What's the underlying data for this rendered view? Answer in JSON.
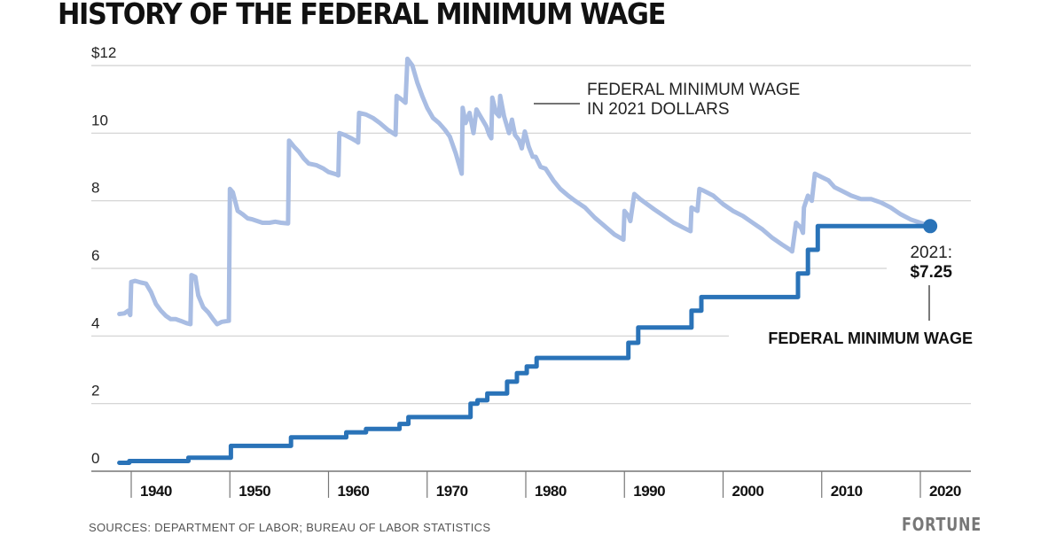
{
  "header": {
    "title": "HISTORY OF THE FEDERAL MINIMUM WAGE"
  },
  "footer": {
    "source": "SOURCES: DEPARTMENT OF LABOR; BUREAU OF LABOR STATISTICS",
    "logo": "FORTUNE"
  },
  "colors": {
    "nominal": "#2a73b8",
    "real": "#a9bde3",
    "grid": "#d0d0d0",
    "axis": "#777777"
  },
  "chart_data": {
    "type": "line",
    "title": "HISTORY OF THE FEDERAL MINIMUM WAGE",
    "xlabel": "",
    "ylabel": "",
    "xlim": [
      1937,
      2024
    ],
    "ylim": [
      0,
      12
    ],
    "grid": true,
    "yticks": [
      {
        "value": 0,
        "label": "0"
      },
      {
        "value": 2,
        "label": "2"
      },
      {
        "value": 4,
        "label": "4"
      },
      {
        "value": 6,
        "label": "6"
      },
      {
        "value": 8,
        "label": "8"
      },
      {
        "value": 10,
        "label": "10"
      },
      {
        "value": 12,
        "label": "$12"
      }
    ],
    "xticks": [
      {
        "value": 1940,
        "label": "1940"
      },
      {
        "value": 1950,
        "label": "1950"
      },
      {
        "value": 1960,
        "label": "1960"
      },
      {
        "value": 1970,
        "label": "1970"
      },
      {
        "value": 1980,
        "label": "1980"
      },
      {
        "value": 1990,
        "label": "1990"
      },
      {
        "value": 2000,
        "label": "2000"
      },
      {
        "value": 2010,
        "label": "2010"
      },
      {
        "value": 2020,
        "label": "2020"
      }
    ],
    "series": [
      {
        "name": "FEDERAL MINIMUM WAGE IN 2021 DOLLARS",
        "style": "real",
        "points": [
          [
            1938.8,
            4.65
          ],
          [
            1939.3,
            4.67
          ],
          [
            1939.7,
            4.75
          ],
          [
            1939.9,
            4.62
          ],
          [
            1940.0,
            5.6
          ],
          [
            1940.4,
            5.63
          ],
          [
            1941.0,
            5.58
          ],
          [
            1941.5,
            5.55
          ],
          [
            1942.0,
            5.3
          ],
          [
            1942.5,
            4.95
          ],
          [
            1943.0,
            4.75
          ],
          [
            1943.5,
            4.6
          ],
          [
            1944.0,
            4.5
          ],
          [
            1944.5,
            4.5
          ],
          [
            1945.0,
            4.45
          ],
          [
            1945.6,
            4.38
          ],
          [
            1946.0,
            4.35
          ],
          [
            1946.1,
            5.8
          ],
          [
            1946.5,
            5.75
          ],
          [
            1946.8,
            5.2
          ],
          [
            1947.3,
            4.85
          ],
          [
            1947.8,
            4.7
          ],
          [
            1948.3,
            4.5
          ],
          [
            1948.7,
            4.35
          ],
          [
            1949.2,
            4.42
          ],
          [
            1949.9,
            4.45
          ],
          [
            1950.0,
            8.35
          ],
          [
            1950.3,
            8.25
          ],
          [
            1950.8,
            7.7
          ],
          [
            1951.3,
            7.6
          ],
          [
            1951.8,
            7.48
          ],
          [
            1952.3,
            7.45
          ],
          [
            1952.8,
            7.4
          ],
          [
            1953.3,
            7.35
          ],
          [
            1954.0,
            7.35
          ],
          [
            1954.6,
            7.38
          ],
          [
            1955.2,
            7.35
          ],
          [
            1955.9,
            7.33
          ],
          [
            1956.0,
            9.78
          ],
          [
            1956.5,
            9.6
          ],
          [
            1957.0,
            9.45
          ],
          [
            1957.5,
            9.25
          ],
          [
            1958.0,
            9.1
          ],
          [
            1958.8,
            9.05
          ],
          [
            1959.5,
            8.95
          ],
          [
            1960.0,
            8.85
          ],
          [
            1960.8,
            8.78
          ],
          [
            1961.0,
            8.75
          ],
          [
            1961.1,
            10.0
          ],
          [
            1961.6,
            9.95
          ],
          [
            1962.3,
            9.85
          ],
          [
            1962.9,
            9.75
          ],
          [
            1963.0,
            9.72
          ],
          [
            1963.1,
            10.6
          ],
          [
            1963.8,
            10.55
          ],
          [
            1964.5,
            10.45
          ],
          [
            1965.2,
            10.3
          ],
          [
            1966.0,
            10.1
          ],
          [
            1966.8,
            9.95
          ],
          [
            1966.9,
            11.1
          ],
          [
            1967.4,
            11.0
          ],
          [
            1967.8,
            10.9
          ],
          [
            1968.0,
            12.2
          ],
          [
            1968.5,
            12.0
          ],
          [
            1969.0,
            11.5
          ],
          [
            1969.5,
            11.1
          ],
          [
            1970.0,
            10.75
          ],
          [
            1970.6,
            10.45
          ],
          [
            1971.2,
            10.3
          ],
          [
            1971.8,
            10.1
          ],
          [
            1972.3,
            9.9
          ],
          [
            1972.9,
            9.4
          ],
          [
            1973.5,
            8.8
          ],
          [
            1973.6,
            10.75
          ],
          [
            1973.9,
            10.3
          ],
          [
            1974.3,
            10.6
          ],
          [
            1974.7,
            10.0
          ],
          [
            1975.0,
            10.7
          ],
          [
            1975.4,
            10.5
          ],
          [
            1976.0,
            10.2
          ],
          [
            1976.3,
            9.95
          ],
          [
            1976.5,
            9.85
          ],
          [
            1976.6,
            11.05
          ],
          [
            1977.0,
            10.6
          ],
          [
            1977.3,
            10.5
          ],
          [
            1977.4,
            11.1
          ],
          [
            1977.8,
            10.5
          ],
          [
            1978.3,
            10.0
          ],
          [
            1978.6,
            10.4
          ],
          [
            1978.9,
            9.95
          ],
          [
            1979.3,
            9.8
          ],
          [
            1979.6,
            9.55
          ],
          [
            1979.9,
            10.05
          ],
          [
            1980.3,
            9.6
          ],
          [
            1980.7,
            9.3
          ],
          [
            1981.0,
            9.3
          ],
          [
            1981.5,
            9.0
          ],
          [
            1982.0,
            8.95
          ],
          [
            1982.8,
            8.6
          ],
          [
            1983.5,
            8.35
          ],
          [
            1984.3,
            8.15
          ],
          [
            1985.0,
            8.0
          ],
          [
            1986.0,
            7.8
          ],
          [
            1987.0,
            7.5
          ],
          [
            1988.0,
            7.25
          ],
          [
            1989.0,
            7.0
          ],
          [
            1989.9,
            6.85
          ],
          [
            1990.0,
            7.7
          ],
          [
            1990.4,
            7.55
          ],
          [
            1990.6,
            7.4
          ],
          [
            1991.0,
            8.2
          ],
          [
            1991.6,
            8.05
          ],
          [
            1992.3,
            7.9
          ],
          [
            1993.0,
            7.75
          ],
          [
            1994.0,
            7.55
          ],
          [
            1995.0,
            7.35
          ],
          [
            1996.0,
            7.2
          ],
          [
            1996.7,
            7.1
          ],
          [
            1996.8,
            7.8
          ],
          [
            1997.4,
            7.7
          ],
          [
            1997.6,
            8.35
          ],
          [
            1998.0,
            8.3
          ],
          [
            1999.0,
            8.15
          ],
          [
            2000.0,
            7.9
          ],
          [
            2001.0,
            7.7
          ],
          [
            2002.0,
            7.55
          ],
          [
            2003.0,
            7.35
          ],
          [
            2004.0,
            7.15
          ],
          [
            2005.0,
            6.9
          ],
          [
            2006.0,
            6.7
          ],
          [
            2006.8,
            6.55
          ],
          [
            2007.0,
            6.5
          ],
          [
            2007.4,
            7.35
          ],
          [
            2007.9,
            7.2
          ],
          [
            2008.1,
            7.05
          ],
          [
            2008.2,
            7.8
          ],
          [
            2008.6,
            8.15
          ],
          [
            2009.0,
            8.0
          ],
          [
            2009.3,
            8.8
          ],
          [
            2010.0,
            8.7
          ],
          [
            2010.7,
            8.6
          ],
          [
            2011.3,
            8.4
          ],
          [
            2012.0,
            8.3
          ],
          [
            2013.0,
            8.15
          ],
          [
            2014.0,
            8.05
          ],
          [
            2015.0,
            8.05
          ],
          [
            2016.0,
            7.95
          ],
          [
            2017.0,
            7.8
          ],
          [
            2018.0,
            7.6
          ],
          [
            2019.0,
            7.45
          ],
          [
            2020.0,
            7.35
          ],
          [
            2021.0,
            7.25
          ]
        ]
      },
      {
        "name": "FEDERAL MINIMUM WAGE",
        "style": "nominal",
        "step": true,
        "points": [
          [
            1938.8,
            0.25
          ],
          [
            1939.8,
            0.3
          ],
          [
            1945.8,
            0.4
          ],
          [
            1950.1,
            0.75
          ],
          [
            1956.2,
            1.0
          ],
          [
            1961.8,
            1.15
          ],
          [
            1963.8,
            1.25
          ],
          [
            1967.2,
            1.4
          ],
          [
            1968.1,
            1.6
          ],
          [
            1974.4,
            2.0
          ],
          [
            1975.1,
            2.1
          ],
          [
            1976.1,
            2.3
          ],
          [
            1978.1,
            2.65
          ],
          [
            1979.1,
            2.9
          ],
          [
            1980.1,
            3.1
          ],
          [
            1981.1,
            3.35
          ],
          [
            1990.4,
            3.8
          ],
          [
            1991.4,
            4.25
          ],
          [
            1996.8,
            4.75
          ],
          [
            1997.8,
            5.15
          ],
          [
            2007.6,
            5.85
          ],
          [
            2008.6,
            6.55
          ],
          [
            2009.6,
            7.25
          ],
          [
            2021.0,
            7.25
          ]
        ]
      }
    ],
    "annotations": {
      "real_label_line1": "FEDERAL MINIMUM WAGE",
      "real_label_line2": "IN 2021 DOLLARS",
      "end_year_label": "2021:",
      "end_value_label": "$7.25",
      "nominal_label": "FEDERAL MINIMUM WAGE"
    },
    "legend": "inline-annotations"
  }
}
